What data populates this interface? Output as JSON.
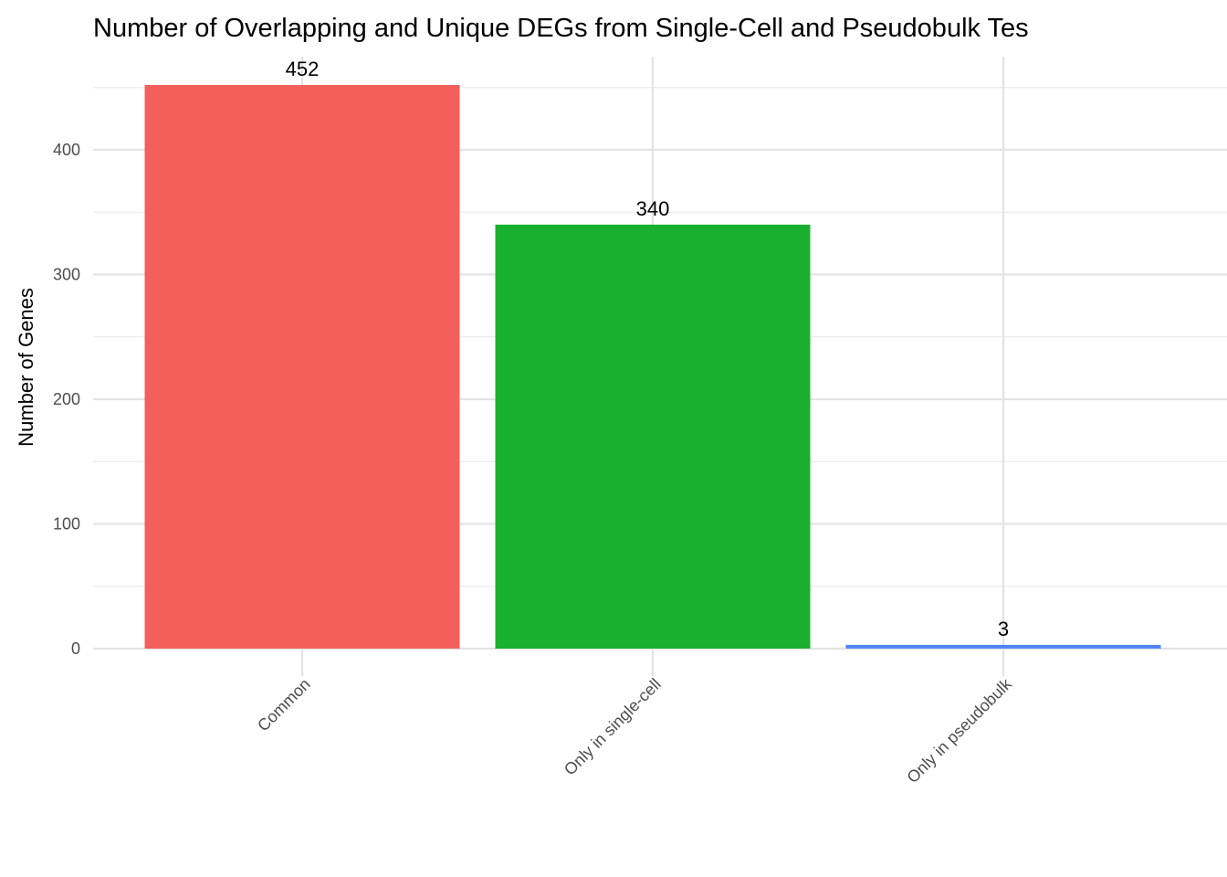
{
  "chart_data": {
    "type": "bar",
    "title": "Number of Overlapping and Unique DEGs from Single-Cell and Pseudobulk Tes",
    "xlabel": "",
    "ylabel": "Number of Genes",
    "categories": [
      "Common",
      "Only in single-cell",
      "Only in pseudobulk"
    ],
    "values": [
      452,
      340,
      3
    ],
    "data_labels": [
      "452",
      "340",
      "3"
    ],
    "colors": [
      "#F3605B",
      "#1AB02F",
      "#5283F7"
    ],
    "ylim": [
      0,
      475
    ],
    "yticks": [
      0,
      100,
      200,
      300,
      400
    ],
    "ytick_labels": [
      "0",
      "100",
      "200",
      "300",
      "400"
    ],
    "grid": true,
    "legend": "none"
  }
}
